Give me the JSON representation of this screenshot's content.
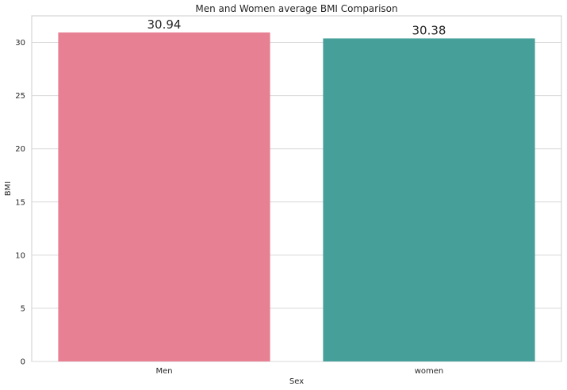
{
  "chart_data": {
    "type": "bar",
    "title": "Men and Women average BMI Comparison",
    "xlabel": "Sex",
    "ylabel": "BMI",
    "categories": [
      "Men",
      "women"
    ],
    "values": [
      30.94,
      30.38
    ],
    "value_labels": [
      "30.94",
      "30.38"
    ],
    "colors": [
      "#e88093",
      "#479f9a"
    ],
    "ylim": [
      0,
      32.5
    ],
    "yticks": [
      0,
      5,
      10,
      15,
      20,
      25,
      30
    ],
    "ytick_labels": [
      "0",
      "5",
      "10",
      "15",
      "20",
      "25",
      "30"
    ],
    "grid": "y",
    "legend": "none"
  }
}
